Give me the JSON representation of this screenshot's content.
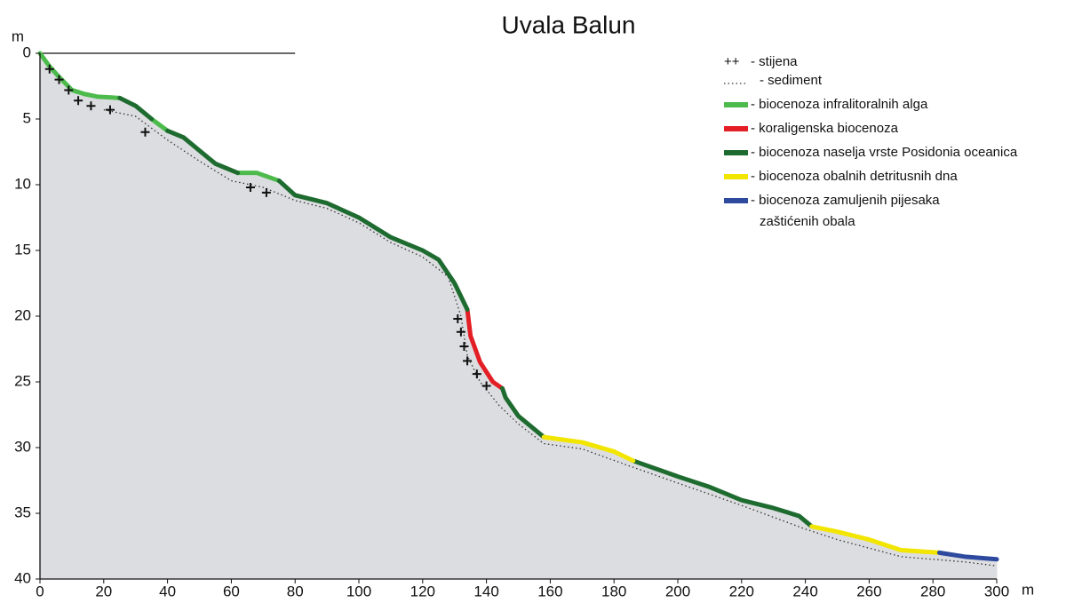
{
  "chart_data": {
    "type": "line",
    "title": "Uvala Balun",
    "y_label": "m",
    "x_label": "m",
    "xlim": [
      0,
      300
    ],
    "xticks": [
      0,
      20,
      40,
      60,
      80,
      100,
      120,
      140,
      160,
      180,
      200,
      220,
      240,
      260,
      280,
      300
    ],
    "ylim": [
      0,
      40
    ],
    "yticks": [
      0,
      5,
      10,
      15,
      20,
      25,
      30,
      35,
      40
    ],
    "y_inverted": true,
    "fill_color": "#dcdde0",
    "rock": {
      "name": "- stijena",
      "symbol": "++",
      "x": [
        3,
        6,
        9,
        12,
        16,
        22,
        33,
        66,
        71,
        131,
        132,
        133,
        134,
        137,
        140
      ],
      "values": [
        1.2,
        2,
        2.8,
        3.6,
        4,
        4.3,
        6,
        10.2,
        10.6,
        20.2,
        21.2,
        22.3,
        23.4,
        24.4,
        25.3
      ]
    },
    "sediment": {
      "name": "- sediment",
      "x": [
        20,
        30,
        40,
        50,
        60,
        70,
        80,
        90,
        100,
        110,
        120,
        128,
        132,
        134,
        138,
        144,
        150,
        158,
        170,
        186,
        200,
        220,
        240,
        250,
        270,
        290,
        300
      ],
      "values": [
        4.3,
        4.8,
        6.6,
        8.2,
        9.7,
        10.2,
        11.2,
        11.8,
        12.9,
        14.4,
        15.5,
        17,
        20,
        23,
        25,
        26.8,
        28.2,
        29.7,
        30.1,
        31.5,
        32.7,
        34.4,
        36.2,
        37,
        38.3,
        38.7,
        39
      ]
    },
    "series": [
      {
        "name": "- biocenoza infralitoralnih alga",
        "color": "#4cbb4c",
        "x": [
          0,
          3,
          6,
          10,
          14,
          18,
          25,
          null,
          35,
          40,
          null,
          62,
          68,
          75
        ],
        "values": [
          0,
          1,
          1.8,
          2.8,
          3.1,
          3.3,
          3.4,
          null,
          5,
          5.9,
          null,
          9.1,
          9.1,
          9.7
        ]
      },
      {
        "name": "- koraligenska biocenoza",
        "color": "#e31e24",
        "x": [
          134,
          135,
          138,
          142,
          145
        ],
        "values": [
          19.5,
          21.5,
          23.5,
          25,
          25.5
        ]
      },
      {
        "name": "- biocenoza naselja vrste Posidonia oceanica",
        "color": "#1e6b30",
        "x": [
          25,
          30,
          35,
          null,
          40,
          45,
          50,
          55,
          62,
          null,
          75,
          80,
          90,
          100,
          110,
          120,
          125,
          130,
          134,
          null,
          145,
          146,
          150,
          158,
          null,
          186,
          200,
          210,
          220,
          230,
          238,
          242
        ],
        "values": [
          3.4,
          4,
          5,
          null,
          5.9,
          6.4,
          7.4,
          8.4,
          9.1,
          null,
          9.7,
          10.8,
          11.4,
          12.5,
          14,
          15,
          15.7,
          17.5,
          19.5,
          null,
          25.5,
          26.2,
          27.6,
          29.2,
          null,
          31,
          32.2,
          33,
          34,
          34.6,
          35.2,
          36
        ]
      },
      {
        "name": "- biocenoza obalnih detritusnih dna",
        "color": "#f2e600",
        "x": [
          158,
          170,
          180,
          186,
          null,
          242,
          250,
          260,
          270,
          282
        ],
        "values": [
          29.2,
          29.6,
          30.3,
          31,
          null,
          36,
          36.4,
          37,
          37.8,
          38
        ]
      },
      {
        "name": [
          "- biocenoza zamuljenih pijesaka",
          "zaštićenih obala"
        ],
        "color": "#2e4a9e",
        "x": [
          282,
          290,
          300
        ],
        "values": [
          38,
          38.3,
          38.5
        ]
      }
    ]
  }
}
